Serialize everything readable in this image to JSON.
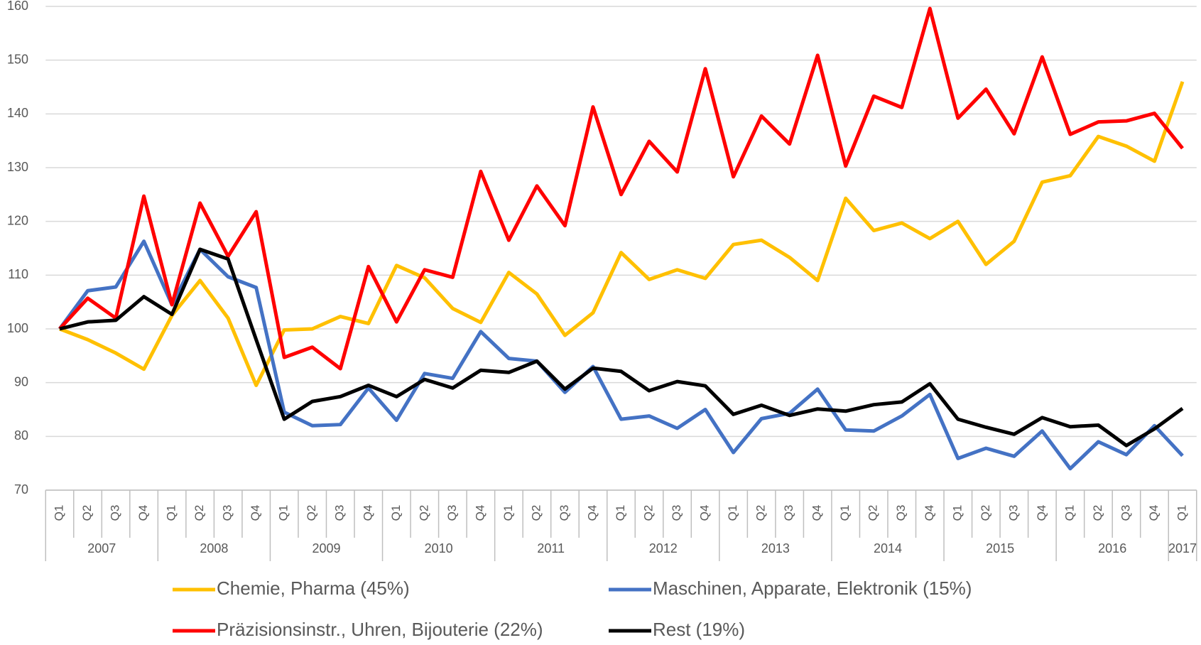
{
  "chart_data": {
    "type": "line",
    "categories": [
      "Q1",
      "Q2",
      "Q3",
      "Q4",
      "Q1",
      "Q2",
      "Q3",
      "Q4",
      "Q1",
      "Q2",
      "Q3",
      "Q4",
      "Q1",
      "Q2",
      "Q3",
      "Q4",
      "Q1",
      "Q2",
      "Q3",
      "Q4",
      "Q1",
      "Q2",
      "Q3",
      "Q4",
      "Q1",
      "Q2",
      "Q3",
      "Q4",
      "Q1",
      "Q2",
      "Q3",
      "Q4",
      "Q1",
      "Q2",
      "Q3",
      "Q4",
      "Q1",
      "Q2",
      "Q3",
      "Q4",
      "Q1"
    ],
    "years": [
      "2007",
      null,
      null,
      null,
      "2008",
      null,
      null,
      null,
      "2009",
      null,
      null,
      null,
      "2010",
      null,
      null,
      null,
      "2011",
      null,
      null,
      null,
      "2012",
      null,
      null,
      null,
      "2013",
      null,
      null,
      null,
      "2014",
      null,
      null,
      null,
      "2015",
      null,
      null,
      null,
      "2016",
      null,
      null,
      null,
      "2017"
    ],
    "ylim": [
      70,
      160
    ],
    "yticks": [
      70,
      80,
      90,
      100,
      110,
      120,
      130,
      140,
      150,
      160
    ],
    "grid": true,
    "series": [
      {
        "name": "Chemie, Pharma (45%)",
        "color": "#FFC000",
        "values": [
          100,
          98,
          95.5,
          92.5,
          102.5,
          109,
          102,
          89.5,
          99.8,
          100,
          102.3,
          101,
          111.8,
          109.5,
          103.8,
          101.2,
          110.5,
          106.5,
          98.8,
          103,
          114.2,
          109.2,
          111,
          109.4,
          115.7,
          116.5,
          113.3,
          109,
          124.3,
          118.3,
          119.7,
          116.8,
          120,
          112,
          116.3,
          127.3,
          128.5,
          135.8,
          134,
          131.2,
          146
        ]
      },
      {
        "name": "Maschinen, Apparate, Elektronik (15%)",
        "color": "#4472C4",
        "values": [
          100,
          107.1,
          107.8,
          116.3,
          104.5,
          114.8,
          109.7,
          107.7,
          84.5,
          82,
          82.2,
          89,
          83,
          91.7,
          90.8,
          99.5,
          94.5,
          94,
          88.2,
          93,
          83.2,
          83.8,
          81.5,
          85,
          77,
          83.3,
          84.3,
          88.8,
          81.2,
          81,
          83.8,
          87.8,
          75.9,
          77.8,
          76.3,
          81,
          74,
          79,
          76.6,
          82,
          76.4
        ]
      },
      {
        "name": "Präzisionsinstr., Uhren, Bijouterie (22%)",
        "color": "#FF0000",
        "values": [
          100,
          105.7,
          102,
          124.7,
          104.5,
          123.4,
          113.5,
          121.8,
          94.7,
          96.6,
          92.6,
          111.6,
          101.3,
          111,
          109.6,
          129.3,
          116.5,
          126.6,
          119.2,
          141.3,
          125,
          134.9,
          129.2,
          148.4,
          128.3,
          139.6,
          134.4,
          150.9,
          130.3,
          143.3,
          141.2,
          159.6,
          139.2,
          144.6,
          136.3,
          150.6,
          136.2,
          138.5,
          138.7,
          140.1,
          133.6
        ]
      },
      {
        "name": "Rest (19%)",
        "color": "#000000",
        "values": [
          100,
          101.3,
          101.6,
          106,
          102.7,
          114.8,
          113,
          98,
          83.2,
          86.5,
          87.4,
          89.5,
          87.4,
          90.6,
          89,
          92.3,
          91.9,
          94,
          88.8,
          92.7,
          92.1,
          88.5,
          90.2,
          89.4,
          84.1,
          85.8,
          83.9,
          85.1,
          84.7,
          85.9,
          86.4,
          89.8,
          83.2,
          81.7,
          80.4,
          83.5,
          81.8,
          82.1,
          78.3,
          81.4,
          85.2
        ]
      }
    ]
  }
}
